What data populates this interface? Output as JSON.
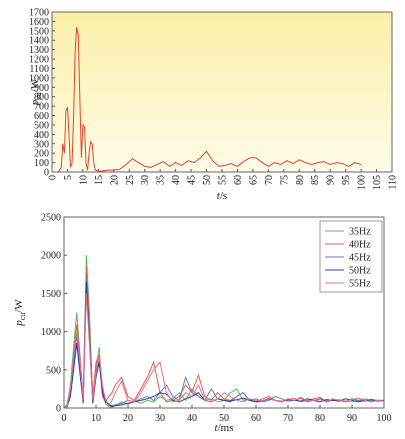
{
  "chart_data": [
    {
      "type": "line",
      "ylabel": {
        "var": "p",
        "sub": "cu",
        "unit": "/W"
      },
      "xlabel": {
        "var": "t",
        "unit": "/s"
      },
      "background": "#fbf3bd",
      "xlim": [
        0,
        110
      ],
      "ylim": [
        0,
        1700
      ],
      "xticks": [
        0,
        5,
        10,
        15,
        20,
        25,
        30,
        35,
        40,
        45,
        50,
        55,
        60,
        65,
        70,
        75,
        80,
        85,
        90,
        95,
        100,
        105,
        110
      ],
      "yticks": [
        0,
        100,
        200,
        300,
        400,
        500,
        600,
        700,
        800,
        900,
        1000,
        1100,
        1200,
        1300,
        1400,
        1500,
        1600,
        1700
      ],
      "x": [
        0,
        1,
        2,
        3,
        3.5,
        4,
        4.5,
        5,
        5.5,
        6,
        6.5,
        7,
        7.5,
        8,
        8.5,
        9,
        9.5,
        10,
        10.5,
        11,
        11.5,
        12,
        12.5,
        13,
        13.5,
        14,
        15,
        16,
        18,
        20,
        22,
        24,
        26,
        28,
        30,
        32,
        34,
        36,
        38,
        40,
        42,
        44,
        46,
        48,
        50,
        52,
        54,
        56,
        58,
        60,
        62,
        64,
        66,
        68,
        70,
        72,
        74,
        76,
        78,
        80,
        82,
        84,
        86,
        88,
        90,
        92,
        94,
        96,
        98,
        100
      ],
      "series": [
        {
          "color": "#e0462a",
          "values": [
            0,
            0,
            0,
            50,
            300,
            200,
            650,
            690,
            400,
            50,
            100,
            600,
            1300,
            1540,
            1450,
            800,
            150,
            500,
            480,
            100,
            20,
            200,
            320,
            300,
            100,
            20,
            10,
            10,
            20,
            20,
            30,
            80,
            140,
            100,
            60,
            50,
            80,
            110,
            60,
            100,
            70,
            120,
            100,
            150,
            220,
            120,
            60,
            70,
            90,
            60,
            110,
            150,
            150,
            100,
            60,
            100,
            80,
            120,
            90,
            130,
            100,
            80,
            100,
            110,
            80,
            100,
            90,
            60,
            100,
            80
          ]
        }
      ]
    },
    {
      "type": "line",
      "ylabel": {
        "var": "p",
        "sub": "cu",
        "unit": "/W"
      },
      "xlabel": {
        "var": "t",
        "unit": "/ms"
      },
      "xlim": [
        0,
        100
      ],
      "ylim": [
        0,
        2500
      ],
      "xticks": [
        0,
        10,
        20,
        30,
        40,
        50,
        60,
        70,
        80,
        90,
        100
      ],
      "yticks": [
        0,
        500,
        1000,
        1500,
        2000,
        2500
      ],
      "legend": "upper right",
      "x": [
        0,
        1,
        2,
        3,
        4,
        5,
        6,
        7,
        8,
        9,
        10,
        11,
        12,
        13,
        14,
        15,
        16,
        18,
        20,
        22,
        24,
        26,
        28,
        30,
        32,
        34,
        36,
        38,
        40,
        42,
        44,
        46,
        48,
        50,
        52,
        54,
        56,
        58,
        60,
        62,
        64,
        66,
        68,
        70,
        72,
        74,
        76,
        78,
        80,
        82,
        84,
        86,
        88,
        90,
        92,
        94,
        96,
        98,
        100
      ],
      "series": [
        {
          "name": "35Hz",
          "color": "#5cb85c",
          "values": [
            0,
            50,
            300,
            800,
            1250,
            700,
            100,
            2000,
            1200,
            100,
            500,
            800,
            200,
            50,
            20,
            10,
            30,
            80,
            50,
            100,
            60,
            100,
            80,
            150,
            100,
            120,
            200,
            100,
            250,
            150,
            100,
            120,
            80,
            100,
            200,
            250,
            100,
            120,
            80,
            100,
            120,
            100,
            80,
            120,
            100,
            140,
            90,
            100,
            120,
            80,
            100,
            110,
            90,
            80,
            100,
            120,
            90,
            100,
            100
          ]
        },
        {
          "name": "40Hz",
          "color": "#e8603c",
          "values": [
            0,
            40,
            250,
            700,
            1100,
            650,
            150,
            1850,
            1000,
            150,
            600,
            700,
            150,
            80,
            150,
            200,
            300,
            400,
            150,
            100,
            250,
            400,
            600,
            200,
            80,
            100,
            150,
            300,
            200,
            430,
            150,
            100,
            200,
            120,
            100,
            150,
            200,
            100,
            80,
            120,
            150,
            100,
            90,
            110,
            130,
            80,
            100,
            120,
            140,
            90,
            110,
            100,
            80,
            120,
            100,
            90,
            110,
            100,
            90
          ]
        },
        {
          "name": "45Hz",
          "color": "#5a7fbf",
          "values": [
            0,
            30,
            200,
            600,
            950,
            500,
            80,
            1700,
            900,
            80,
            450,
            650,
            250,
            100,
            50,
            30,
            40,
            60,
            100,
            80,
            120,
            150,
            100,
            200,
            300,
            150,
            100,
            400,
            200,
            150,
            100,
            250,
            120,
            100,
            80,
            150,
            200,
            100,
            120,
            80,
            100,
            150,
            120,
            90,
            100,
            130,
            80,
            100,
            120,
            90,
            110,
            100,
            80,
            120,
            100,
            90,
            110,
            100,
            100
          ]
        },
        {
          "name": "50Hz",
          "color": "#2c3e8f",
          "values": [
            0,
            20,
            150,
            500,
            850,
            450,
            60,
            1650,
            850,
            60,
            400,
            600,
            200,
            80,
            40,
            20,
            30,
            40,
            60,
            80,
            100,
            120,
            150,
            200,
            180,
            100,
            80,
            120,
            150,
            200,
            100,
            80,
            120,
            100,
            90,
            110,
            130,
            100,
            80,
            90,
            120,
            100,
            80,
            110,
            100,
            90,
            120,
            100,
            80,
            110,
            100,
            90,
            120,
            100,
            80,
            100,
            110,
            90,
            100
          ]
        },
        {
          "name": "55Hz",
          "color": "#e86aa0",
          "values": [
            0,
            30,
            250,
            700,
            1000,
            600,
            100,
            1500,
            800,
            100,
            450,
            700,
            300,
            100,
            50,
            100,
            200,
            350,
            100,
            80,
            200,
            350,
            500,
            600,
            200,
            80,
            100,
            200,
            150,
            300,
            100,
            80,
            120,
            200,
            150,
            100,
            80,
            120,
            100,
            90,
            130,
            100,
            80,
            120,
            100,
            140,
            90,
            100,
            110,
            80,
            120,
            100,
            90,
            110,
            130,
            100,
            80,
            100,
            90
          ]
        }
      ]
    }
  ]
}
